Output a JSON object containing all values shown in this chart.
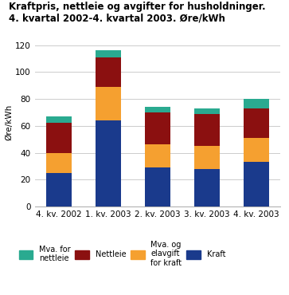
{
  "categories": [
    "4. kv. 2002",
    "1. kv. 2003",
    "2. kv. 2003",
    "3. kv. 2003",
    "4. kv. 2003"
  ],
  "kraft": [
    25,
    64,
    29,
    28,
    33
  ],
  "mva_elavgift": [
    15,
    25,
    17,
    17,
    18
  ],
  "nettleie": [
    22,
    22,
    24,
    24,
    22
  ],
  "mva_nettleie": [
    5,
    5,
    4,
    4,
    7
  ],
  "colors": {
    "kraft": "#1a3a8c",
    "mva_elavgift": "#f5a030",
    "nettleie": "#8b1010",
    "mva_nettleie": "#2aaa90"
  },
  "title_line1": "Kraftpris, nettleie og avgifter for husholdninger.",
  "title_line2": "4. kvartal 2002-4. kvartal 2003. Øre/kWh",
  "ylabel": "Øre/kWh",
  "ylim": [
    0,
    125
  ],
  "yticks": [
    0,
    20,
    40,
    60,
    80,
    100,
    120
  ],
  "legend_labels": [
    "Mva. for\nnettleie",
    "Nettleie",
    "Mva. og\nelavgift\nfor kraft",
    "Kraft"
  ],
  "legend_colors": [
    "#2aaa90",
    "#8b1010",
    "#f5a030",
    "#1a3a8c"
  ],
  "bg_color": "#ffffff"
}
